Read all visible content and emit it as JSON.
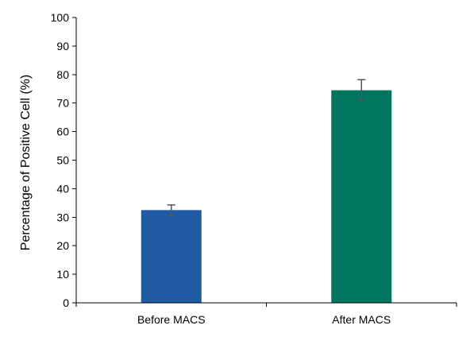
{
  "chart_data": {
    "type": "bar",
    "categories": [
      "Before MACS",
      "After MACS"
    ],
    "values": [
      32.5,
      74.5
    ],
    "errors": [
      1.8,
      3.7
    ],
    "colors": [
      "#1f5aa3",
      "#007560"
    ],
    "error_bar_color": "#555555",
    "ylabel": "Percentage of Positive Cell (%)",
    "xlabel": "",
    "title": "",
    "ylim": [
      0,
      100
    ],
    "yticks": [
      0,
      10,
      20,
      30,
      40,
      50,
      60,
      70,
      80,
      90,
      100
    ],
    "grid": false,
    "legend": "none"
  }
}
